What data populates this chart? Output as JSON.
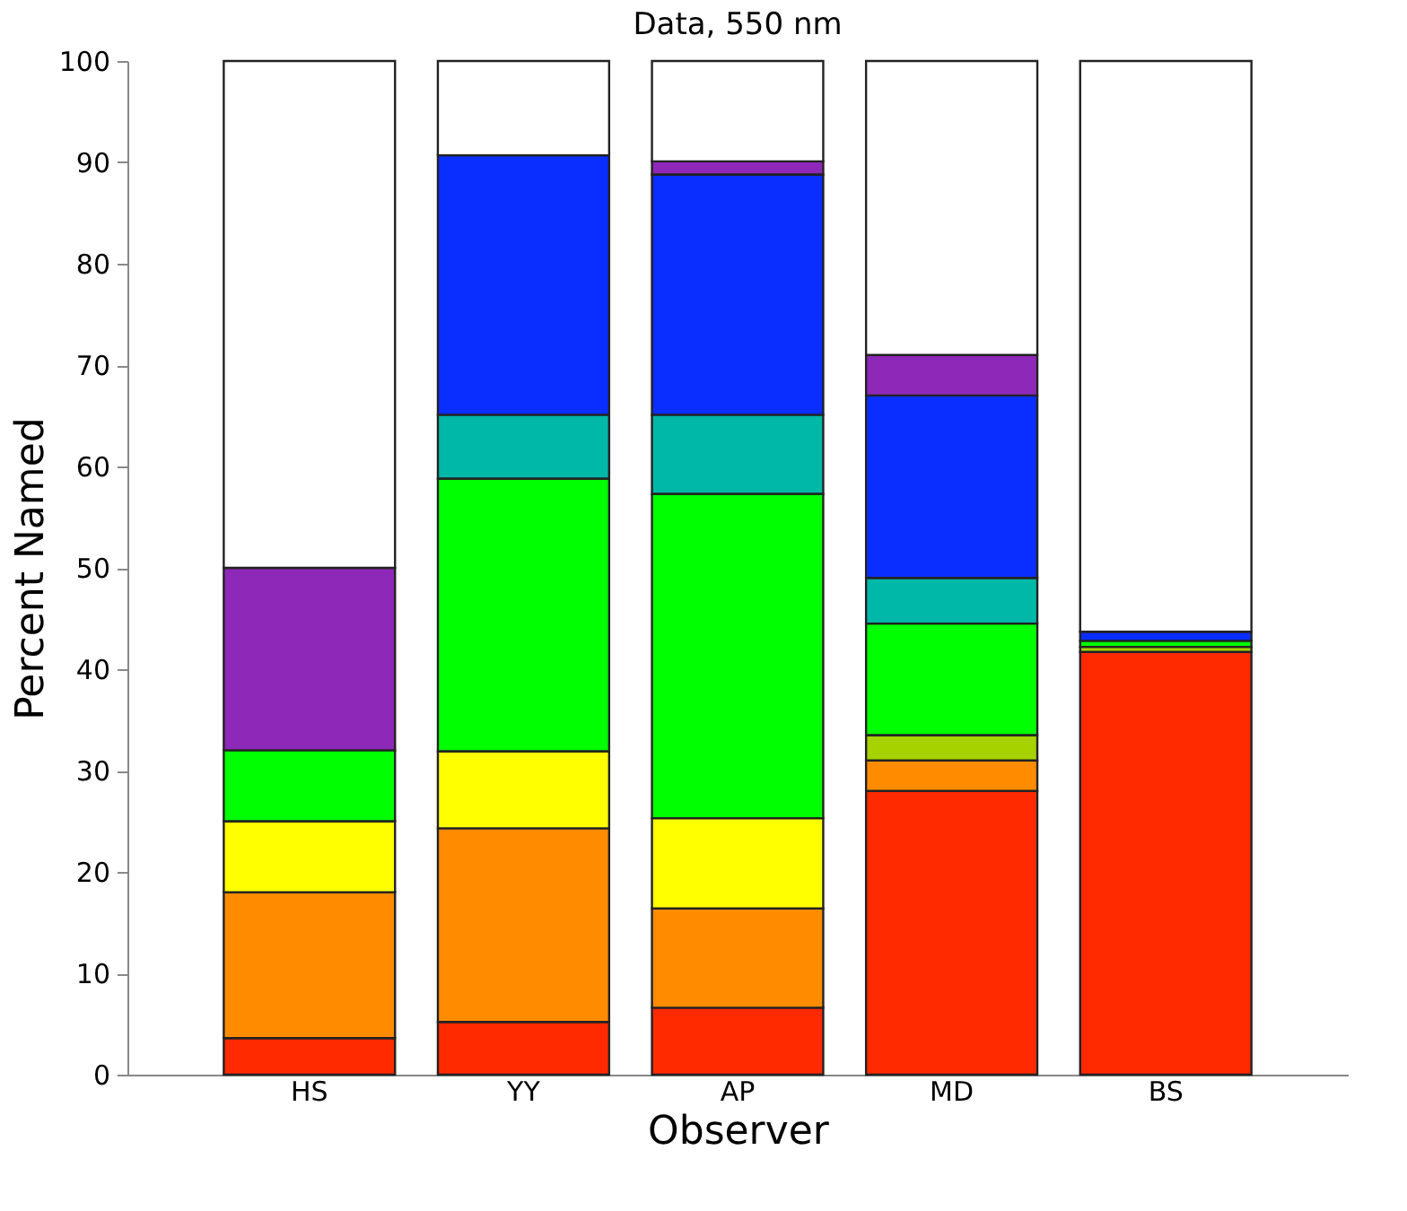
{
  "chart_data": {
    "type": "bar",
    "title": "Data, 550 nm",
    "xlabel": "Observer",
    "ylabel": "Percent Named",
    "categories": [
      "HS",
      "YY",
      "AP",
      "MD",
      "BS"
    ],
    "stacked": true,
    "series": [
      {
        "color": "#ff2a00",
        "values": [
          3.6,
          5.2,
          6.6,
          28,
          41.7
        ]
      },
      {
        "color": "#ff8c00",
        "values": [
          14.4,
          19.1,
          9.8,
          3,
          null
        ]
      },
      {
        "color": "#ffff00",
        "values": [
          7,
          7.6,
          8.9,
          null,
          null
        ]
      },
      {
        "color": "#a6d200",
        "values": [
          null,
          null,
          null,
          2.5,
          0.5
        ]
      },
      {
        "color": "#00ff00",
        "values": [
          7,
          26.9,
          32,
          11,
          0.6
        ]
      },
      {
        "color": "#00b8a8",
        "values": [
          null,
          6.3,
          7.8,
          4.5,
          null
        ]
      },
      {
        "color": "#0a2eff",
        "values": [
          null,
          25.6,
          23.7,
          18,
          0.9
        ]
      },
      {
        "color": "#8e28b8",
        "values": [
          18,
          null,
          1.3,
          4,
          null
        ]
      },
      {
        "color": "#ffffff",
        "values": [
          50,
          9.3,
          9.9,
          29,
          56.3
        ]
      }
    ],
    "ylim": [
      0,
      100
    ],
    "yticks": [
      0,
      10,
      20,
      30,
      40,
      50,
      60,
      70,
      80,
      90,
      100
    ],
    "grid": false
  }
}
